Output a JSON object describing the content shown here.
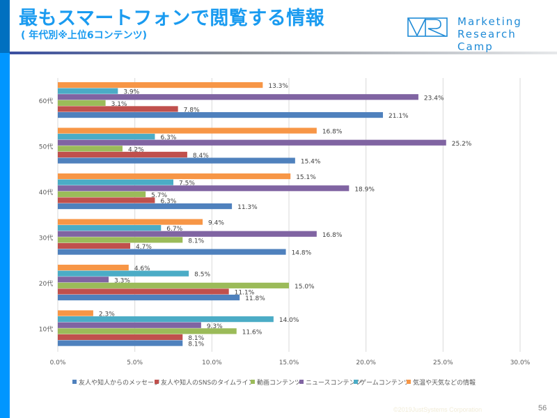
{
  "header": {
    "title": "最もスマートフォンで閲覧する情報",
    "subtitle": "( 年代別※上位6コンテンツ)"
  },
  "logo": {
    "mark": "MR",
    "line1": "Marketing",
    "line2": "Research Camp",
    "color": "#1e8ad6"
  },
  "footer": {
    "copyright": "©2019JustSystems Corporation",
    "page_number": "56"
  },
  "chart_data": {
    "type": "bar",
    "orientation": "horizontal",
    "title": "最もスマートフォンで閲覧する情報",
    "subtitle": "( 年代別※上位6コンテンツ)",
    "xlabel": "",
    "ylabel": "",
    "xlim": [
      0,
      30
    ],
    "x_ticks": [
      "0.0%",
      "5.0%",
      "10.0%",
      "15.0%",
      "20.0%",
      "25.0%",
      "30.0%"
    ],
    "x_tick_values": [
      0,
      5,
      10,
      15,
      20,
      25,
      30
    ],
    "grid": "vertical",
    "legend_position": "bottom",
    "categories": [
      "60代",
      "50代",
      "40代",
      "30代",
      "20代",
      "10代"
    ],
    "series": [
      {
        "name": "友人や知人からのメッセージ",
        "color": "#4f81bd",
        "values": [
          21.1,
          15.4,
          11.3,
          14.8,
          11.8,
          8.1
        ]
      },
      {
        "name": "友人や知人のSNSのタイムライン",
        "color": "#c0504d",
        "values": [
          7.8,
          8.4,
          6.3,
          4.7,
          11.1,
          8.1
        ]
      },
      {
        "name": "動画コンテンツ",
        "color": "#9bbb59",
        "values": [
          3.1,
          4.2,
          5.7,
          8.1,
          15.0,
          11.6
        ]
      },
      {
        "name": "ニュースコンテンツ",
        "color": "#8064a2",
        "values": [
          23.4,
          25.2,
          18.9,
          16.8,
          3.3,
          9.3
        ]
      },
      {
        "name": "ゲームコンテンツ",
        "color": "#4bacc6",
        "values": [
          3.9,
          6.3,
          7.5,
          6.7,
          8.5,
          14.0
        ]
      },
      {
        "name": "気温や天気などの情報",
        "color": "#f79646",
        "values": [
          13.3,
          16.8,
          15.1,
          9.4,
          4.6,
          2.3
        ]
      }
    ],
    "value_suffix": "%"
  }
}
